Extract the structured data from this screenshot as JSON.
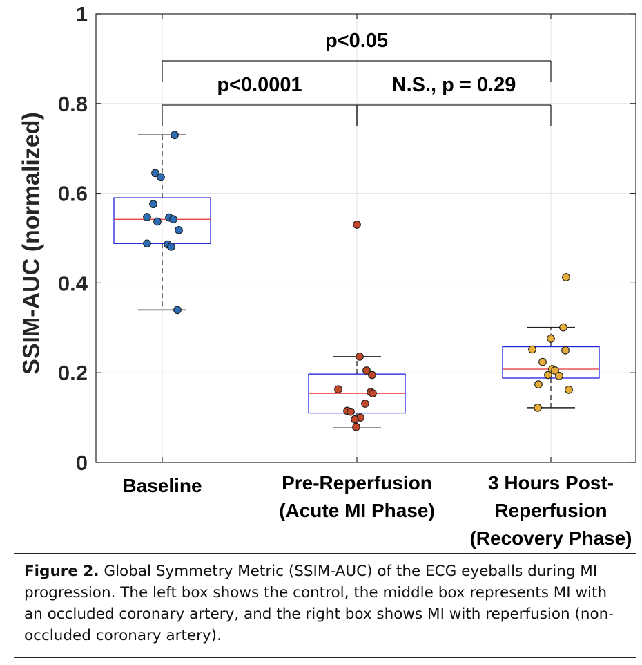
{
  "chart_data": {
    "type": "box",
    "ylabel": "SSIM-AUC (normalized)",
    "ylim": [
      0,
      1
    ],
    "yticks": [
      0,
      0.2,
      0.4,
      0.6,
      0.8,
      1
    ],
    "ytick_labels": [
      "0",
      "0.2",
      "0.4",
      "0.6",
      "0.8",
      "1"
    ],
    "grid": true,
    "categories": [
      [
        "Baseline"
      ],
      [
        "Pre-Reperfusion",
        "(Acute MI Phase)"
      ],
      [
        "3 Hours Post-",
        "Reperfusion",
        "(Recovery Phase)"
      ]
    ],
    "groups": [
      {
        "name": "Baseline",
        "color": "#2e6db4",
        "box": {
          "whisker_low": 0.34,
          "q1": 0.488,
          "median": 0.542,
          "q3": 0.59,
          "whisker_high": 0.73
        },
        "points": [
          0.73,
          0.645,
          0.636,
          0.576,
          0.547,
          0.546,
          0.542,
          0.537,
          0.518,
          0.488,
          0.486,
          0.481,
          0.34
        ]
      },
      {
        "name": "Pre-Reperfusion (Acute MI Phase)",
        "color": "#c2482a",
        "box": {
          "whisker_low": 0.079,
          "q1": 0.11,
          "median": 0.154,
          "q3": 0.197,
          "whisker_high": 0.236
        },
        "points": [
          0.53,
          0.236,
          0.205,
          0.195,
          0.163,
          0.157,
          0.154,
          0.131,
          0.115,
          0.113,
          0.1,
          0.096,
          0.079
        ]
      },
      {
        "name": "3 Hours Post-Reperfusion (Recovery Phase)",
        "color": "#e6ad3a",
        "box": {
          "whisker_low": 0.122,
          "q1": 0.188,
          "median": 0.208,
          "q3": 0.258,
          "whisker_high": 0.301
        },
        "points": [
          0.413,
          0.301,
          0.276,
          0.252,
          0.25,
          0.224,
          0.208,
          0.205,
          0.195,
          0.193,
          0.174,
          0.162,
          0.122
        ]
      }
    ],
    "annotations": [
      {
        "label": "p<0.05",
        "from": 0,
        "to": 2
      },
      {
        "label": "p<0.0001",
        "from": 0,
        "to": 1
      },
      {
        "label": "N.S., p = 0.29",
        "from": 1,
        "to": 2
      }
    ]
  },
  "caption": {
    "figure_label": "Figure 2.",
    "text": "Global Symmetry Metric (SSIM-AUC) of the ECG eyeballs during MI progression. The left box shows the control, the middle box represents MI with an occluded coronary artery, and the right box shows MI with reperfusion (non-occluded coronary artery)."
  }
}
